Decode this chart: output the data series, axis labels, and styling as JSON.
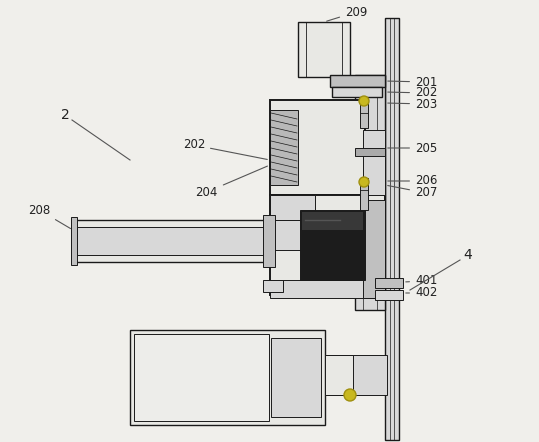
{
  "bg_color": "#f0efeb",
  "line_color": "#4a4a4a",
  "dark_color": "#1a1a1a",
  "mid_color": "#888888",
  "light_gray": "#d8d8d8",
  "med_gray": "#c0c0c0",
  "dark_gray": "#606060",
  "black": "#111111",
  "yellow": "#c8b820",
  "white_gray": "#e8e8e4",
  "figsize": [
    5.39,
    4.42
  ],
  "dpi": 100
}
